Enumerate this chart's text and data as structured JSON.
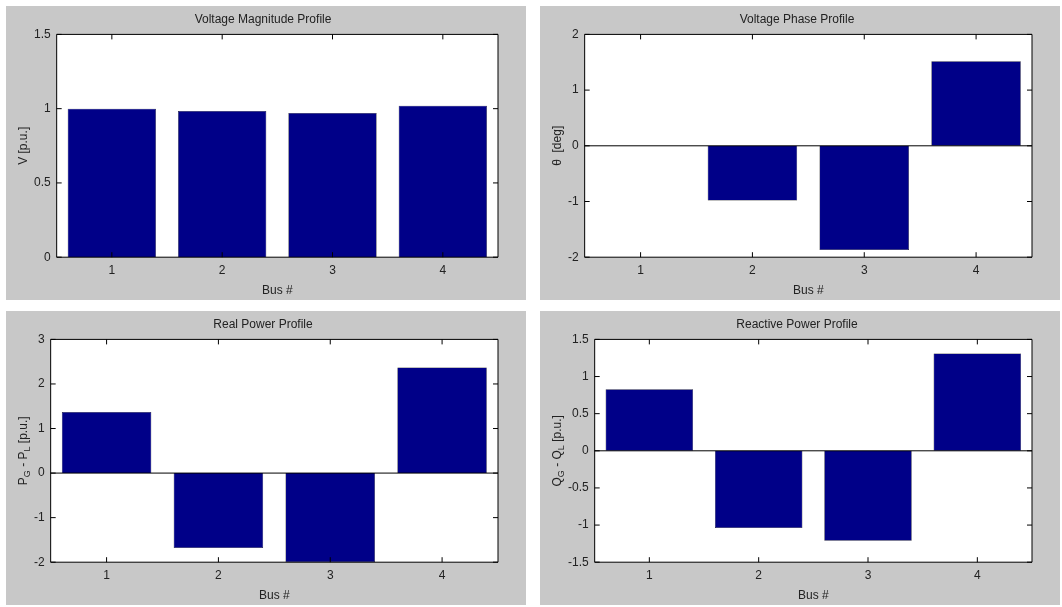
{
  "chart_data": [
    {
      "type": "bar",
      "title": "Voltage Magnitude Profile",
      "xlabel": "Bus #",
      "ylabel": "V [p.u.]",
      "categories": [
        "1",
        "2",
        "3",
        "4"
      ],
      "values": [
        1.0,
        0.985,
        0.97,
        1.02
      ],
      "color": "#000088",
      "ylim": [
        0,
        1.5
      ],
      "yticks": [
        0,
        0.5,
        1,
        1.5
      ],
      "grid": false
    },
    {
      "type": "bar",
      "title": "Voltage Phase Profile",
      "xlabel": "Bus #",
      "ylabel": "θ  [deg]",
      "categories": [
        "1",
        "2",
        "3",
        "4"
      ],
      "values": [
        0,
        -0.98,
        -1.87,
        1.52
      ],
      "color": "#000088",
      "ylim": [
        -2,
        2
      ],
      "yticks": [
        -2,
        -1,
        0,
        1,
        2
      ],
      "grid": false,
      "ref_lines": [
        {
          "axis": "y",
          "value": 0,
          "color": "#000000"
        }
      ]
    },
    {
      "type": "bar",
      "title": "Real Power Profile",
      "xlabel": "Bus #",
      "ylabel": "P$_{G}$ - P$_{L}$ [p.u.]",
      "categories": [
        "1",
        "2",
        "3",
        "4"
      ],
      "values": [
        1.37,
        -1.68,
        -2,
        2.37
      ],
      "color": "#000088",
      "ylim": [
        -2,
        3
      ],
      "yticks": [
        -2,
        -1,
        0,
        1,
        2,
        3
      ],
      "grid": false,
      "ref_lines": [
        {
          "axis": "y",
          "value": 0,
          "color": "#000000"
        }
      ]
    },
    {
      "type": "bar",
      "title": "Reactive Power Profile",
      "xlabel": "Bus #",
      "ylabel": "Q$_{G}$ - Q$_{L}$ [p.u.]",
      "categories": [
        "1",
        "2",
        "3",
        "4"
      ],
      "values": [
        0.83,
        -1.04,
        -1.21,
        1.31
      ],
      "color": "#000088",
      "ylim": [
        -1.5,
        1.5
      ],
      "yticks": [
        -1.5,
        -1,
        -0.5,
        0,
        0.5,
        1,
        1.5
      ],
      "grid": false,
      "ref_lines": [
        {
          "axis": "y",
          "value": 0,
          "color": "#000000"
        }
      ]
    }
  ]
}
